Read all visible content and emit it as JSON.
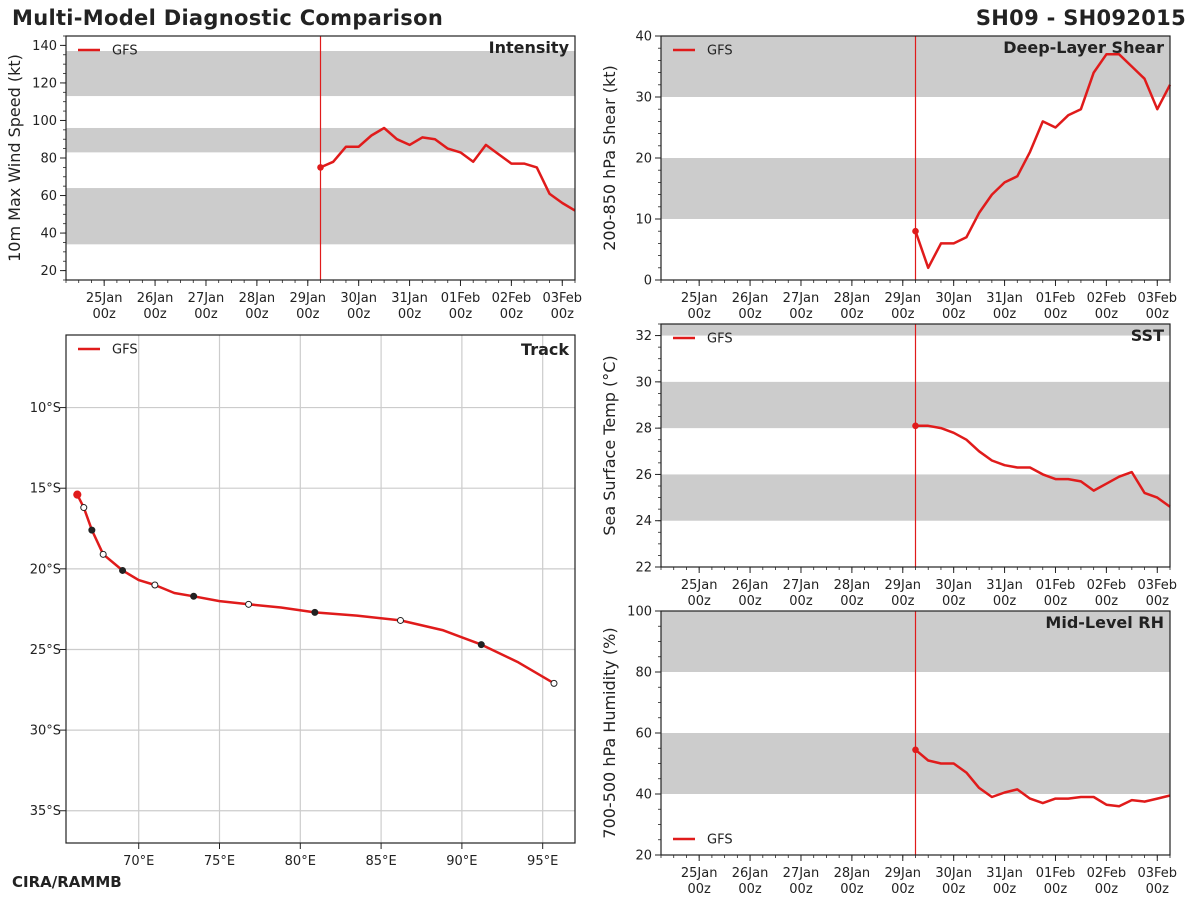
{
  "header": {
    "title": "Multi-Model Diagnostic Comparison",
    "storm_id": "SH09 - SH092015",
    "credit": "CIRA/RAMMB"
  },
  "colors": {
    "series": "#e01b1b",
    "band": "#cccccc",
    "grid": "#cccccc",
    "axis": "#222222"
  },
  "time_axis": {
    "ticks": [
      {
        "day": 0,
        "label1": "25Jan",
        "label2": "00z"
      },
      {
        "day": 1,
        "label1": "26Jan",
        "label2": "00z"
      },
      {
        "day": 2,
        "label1": "27Jan",
        "label2": "00z"
      },
      {
        "day": 3,
        "label1": "28Jan",
        "label2": "00z"
      },
      {
        "day": 4,
        "label1": "29Jan",
        "label2": "00z"
      },
      {
        "day": 5,
        "label1": "30Jan",
        "label2": "00z"
      },
      {
        "day": 6,
        "label1": "31Jan",
        "label2": "00z"
      },
      {
        "day": 7,
        "label1": "01Feb",
        "label2": "00z"
      },
      {
        "day": 8,
        "label1": "02Feb",
        "label2": "00z"
      },
      {
        "day": 9,
        "label1": "03Feb",
        "label2": "00z"
      }
    ],
    "init_day": 4.25,
    "xlim": [
      -0.75,
      9.25
    ]
  },
  "chart_data": [
    {
      "id": "intensity",
      "type": "line",
      "title": "Intensity",
      "ylabel": "10m Max Wind Speed (kt)",
      "ylim": [
        15,
        145
      ],
      "yticks": [
        20,
        40,
        60,
        80,
        100,
        120,
        140
      ],
      "minor_step": 5,
      "bands": [
        [
          34,
          64
        ],
        [
          83,
          96
        ],
        [
          113,
          137
        ]
      ],
      "legend": "GFS",
      "legend_position": "top-left",
      "series": [
        {
          "name": "GFS",
          "x": [
            4.25,
            4.5,
            4.75,
            5.0,
            5.25,
            5.5,
            5.75,
            6.0,
            6.25,
            6.5,
            6.75,
            7.0,
            7.25,
            7.5,
            7.75,
            8.0,
            8.25,
            8.5,
            8.75,
            9.0,
            9.25
          ],
          "y": [
            75,
            78,
            86,
            86,
            92,
            96,
            90,
            87,
            91,
            90,
            85,
            83,
            78,
            87,
            82,
            77,
            77,
            75,
            61,
            56,
            52
          ]
        }
      ]
    },
    {
      "id": "shear",
      "type": "line",
      "title": "Deep-Layer Shear",
      "ylabel": "200-850 hPa Shear (kt)",
      "ylim": [
        0,
        40
      ],
      "yticks": [
        0,
        10,
        20,
        30,
        40
      ],
      "minor_step": 2,
      "bands": [
        [
          10,
          20
        ],
        [
          30,
          40
        ]
      ],
      "legend": "GFS",
      "legend_position": "top-left",
      "series": [
        {
          "name": "GFS",
          "x": [
            4.25,
            4.5,
            4.75,
            5.0,
            5.25,
            5.5,
            5.75,
            6.0,
            6.25,
            6.5,
            6.75,
            7.0,
            7.25,
            7.5,
            7.75,
            8.0,
            8.25,
            8.5,
            8.75,
            9.0,
            9.25
          ],
          "y": [
            8,
            2,
            6,
            6,
            7,
            11,
            14,
            16,
            17,
            21,
            26,
            25,
            27,
            28,
            34,
            37,
            37,
            35,
            33,
            28,
            32
          ]
        }
      ]
    },
    {
      "id": "track",
      "type": "scatter",
      "title": "Track",
      "legend": "GFS",
      "legend_position": "top-left",
      "xlim": [
        65.5,
        97
      ],
      "ylim": [
        -37,
        -5.5
      ],
      "xticks": [
        70,
        75,
        80,
        85,
        90,
        95
      ],
      "xticklabels": [
        "70°E",
        "75°E",
        "80°E",
        "85°E",
        "90°E",
        "95°E"
      ],
      "yticks": [
        -10,
        -15,
        -20,
        -25,
        -30,
        -35
      ],
      "yticklabels": [
        "10°S",
        "15°S",
        "20°S",
        "25°S",
        "30°S",
        "35°S"
      ],
      "track": [
        {
          "lon": 66.2,
          "lat": -15.4,
          "m": "start"
        },
        {
          "lon": 66.6,
          "lat": -16.2,
          "m": "open"
        },
        {
          "lon": 67.1,
          "lat": -17.6,
          "m": "filled"
        },
        {
          "lon": 67.8,
          "lat": -19.1,
          "m": "open"
        },
        {
          "lon": 69.0,
          "lat": -20.1,
          "m": "filled"
        },
        {
          "lon": 70.0,
          "lat": -20.7,
          "m": "none"
        },
        {
          "lon": 71.0,
          "lat": -21.0,
          "m": "open"
        },
        {
          "lon": 72.2,
          "lat": -21.5,
          "m": "none"
        },
        {
          "lon": 73.4,
          "lat": -21.7,
          "m": "filled"
        },
        {
          "lon": 75.0,
          "lat": -22.0,
          "m": "none"
        },
        {
          "lon": 76.8,
          "lat": -22.2,
          "m": "open"
        },
        {
          "lon": 78.8,
          "lat": -22.4,
          "m": "none"
        },
        {
          "lon": 80.9,
          "lat": -22.7,
          "m": "filled"
        },
        {
          "lon": 83.5,
          "lat": -22.9,
          "m": "none"
        },
        {
          "lon": 86.2,
          "lat": -23.2,
          "m": "open"
        },
        {
          "lon": 88.8,
          "lat": -23.8,
          "m": "none"
        },
        {
          "lon": 91.2,
          "lat": -24.7,
          "m": "filled"
        },
        {
          "lon": 93.5,
          "lat": -25.8,
          "m": "none"
        },
        {
          "lon": 95.7,
          "lat": -27.1,
          "m": "open"
        }
      ]
    },
    {
      "id": "sst",
      "type": "line",
      "title": "SST",
      "ylabel": "Sea Surface Temp (°C)",
      "ylim": [
        22,
        32.5
      ],
      "yticks": [
        22,
        24,
        26,
        28,
        30,
        32
      ],
      "minor_step": 0.5,
      "bands": [
        [
          24,
          26
        ],
        [
          28,
          30
        ],
        [
          32,
          32.5
        ]
      ],
      "legend": "GFS",
      "legend_position": "top-left",
      "series": [
        {
          "name": "GFS",
          "x": [
            4.25,
            4.5,
            4.75,
            5.0,
            5.25,
            5.5,
            5.75,
            6.0,
            6.25,
            6.5,
            6.75,
            7.0,
            7.25,
            7.5,
            7.75,
            8.0,
            8.25,
            8.5,
            8.75,
            9.0,
            9.25
          ],
          "y": [
            28.1,
            28.1,
            28.0,
            27.8,
            27.5,
            27.0,
            26.6,
            26.4,
            26.3,
            26.3,
            26.0,
            25.8,
            25.8,
            25.7,
            25.3,
            25.6,
            25.9,
            26.1,
            25.2,
            25.0,
            24.6
          ]
        }
      ]
    },
    {
      "id": "rh",
      "type": "line",
      "title": "Mid-Level RH",
      "ylabel": "700-500 hPa Humidity (%)",
      "ylim": [
        20,
        100
      ],
      "yticks": [
        20,
        40,
        60,
        80,
        100
      ],
      "minor_step": 5,
      "bands": [
        [
          40,
          60
        ],
        [
          80,
          100
        ]
      ],
      "legend": "GFS",
      "legend_position": "bottom-left",
      "series": [
        {
          "name": "GFS",
          "x": [
            4.25,
            4.5,
            4.75,
            5.0,
            5.25,
            5.5,
            5.75,
            6.0,
            6.25,
            6.5,
            6.75,
            7.0,
            7.25,
            7.5,
            7.75,
            8.0,
            8.25,
            8.5,
            8.75,
            9.0,
            9.25
          ],
          "y": [
            54.5,
            51,
            50,
            50,
            47,
            42,
            39,
            40.5,
            41.5,
            38.5,
            37,
            38.5,
            38.5,
            39,
            39,
            36.5,
            36,
            38,
            37.5,
            38.5,
            39.5
          ]
        }
      ]
    }
  ]
}
